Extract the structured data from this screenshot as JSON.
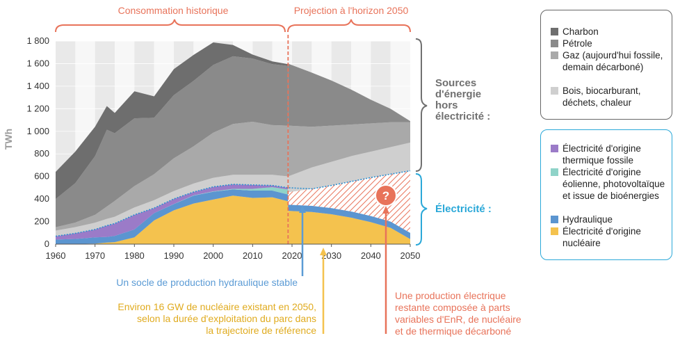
{
  "headers": {
    "historic": "Consommation historique",
    "projection": "Projection à l'horizon 2050"
  },
  "y_axis_label": "TWh",
  "group_labels": {
    "fossil": [
      "Sources",
      "d'énergie",
      "hors",
      "électricité :"
    ],
    "electricity": "Électricité :"
  },
  "question_mark": "?",
  "annotations": {
    "hydro": "Un socle de production hydraulique stable",
    "nuclear": [
      "Environ 16 GW de nucléaire existant en 2050,",
      "selon la durée d'exploitation du parc dans",
      "la trajectoire de référence"
    ],
    "remaining": [
      "Une production électrique",
      "restante composée à parts",
      "variables d'EnR, de nucléaire",
      "et de thermique décarboné"
    ]
  },
  "legend_fossil": [
    {
      "label": "Charbon",
      "color": "#6e6e6e"
    },
    {
      "label": "Pétrole",
      "color": "#8a8a8a"
    },
    {
      "label": "Gaz (aujourd'hui fossile, demain décarboné)",
      "color": "#a9a9a9"
    },
    {
      "label": "Bois, biocarburant, déchets, chaleur",
      "color": "#cfcfcf"
    }
  ],
  "legend_electricity": [
    {
      "label": "Électricité d'origine thermique fossile",
      "color": "#9b7bc8"
    },
    {
      "label": "Électricité d'origine éolienne, photovoltaïque et issue de bioénergies",
      "color": "#8fd3c8"
    },
    {
      "label": "Hydraulique",
      "color": "#5b95d0"
    },
    {
      "label": "Électricité d'origine nucléaire",
      "color": "#f4c24e"
    }
  ],
  "chart_data": {
    "type": "area",
    "stacked": true,
    "ylabel": "TWh",
    "xlim": [
      1960,
      2050
    ],
    "ylim": [
      0,
      1800
    ],
    "x_ticks": [
      1960,
      1970,
      1980,
      1990,
      2000,
      2010,
      2020,
      2030,
      2040,
      2050
    ],
    "y_ticks": [
      0,
      200,
      400,
      600,
      800,
      1000,
      1200,
      1400,
      1600,
      1800
    ],
    "y_tick_labels": [
      "0",
      "200",
      "400",
      "600",
      "800",
      "1 000",
      "1 200",
      "1 400",
      "1 600",
      "1 800"
    ],
    "projection_start": 2019,
    "historic_years": [
      1960,
      1965,
      1970,
      1973,
      1975,
      1980,
      1985,
      1990,
      1995,
      2000,
      2005,
      2010,
      2015,
      2019
    ],
    "historic_series": [
      {
        "name": "Électricité d'origine nucléaire",
        "color": "#f4c24e",
        "values": [
          0,
          1,
          5,
          14,
          18,
          60,
          210,
          300,
          360,
          395,
          430,
          410,
          415,
          380
        ]
      },
      {
        "name": "Hydraulique",
        "color": "#5b95d0",
        "values": [
          40,
          45,
          55,
          50,
          55,
          70,
          65,
          55,
          70,
          70,
          55,
          65,
          60,
          60
        ]
      },
      {
        "name": "Électricité d'origine éolienne, photovoltaïque et issue de bioénergies",
        "color": "#8fd3c8",
        "values": [
          0,
          0,
          0,
          0,
          0,
          0,
          0,
          1,
          2,
          3,
          5,
          15,
          30,
          45
        ]
      },
      {
        "name": "Électricité d'origine thermique fossile",
        "color": "#9b7bc8",
        "values": [
          30,
          50,
          70,
          100,
          110,
          130,
          45,
          45,
          30,
          40,
          40,
          35,
          15,
          15
        ]
      },
      {
        "name": "Bois, biocarburant, déchets, chaleur",
        "color": "#cfcfcf",
        "values": [
          50,
          55,
          60,
          60,
          60,
          65,
          70,
          70,
          75,
          80,
          85,
          90,
          95,
          100
        ]
      },
      {
        "name": "Gaz (aujourd'hui fossile, demain décarboné)",
        "color": "#a9a9a9",
        "values": [
          30,
          40,
          70,
          110,
          140,
          190,
          230,
          290,
          330,
          400,
          450,
          470,
          440,
          450
        ]
      },
      {
        "name": "Pétrole",
        "color": "#8a8a8a",
        "values": [
          250,
          350,
          520,
          680,
          600,
          600,
          500,
          560,
          580,
          600,
          600,
          560,
          540,
          530
        ]
      },
      {
        "name": "Charbon",
        "color": "#6e6e6e",
        "values": [
          240,
          280,
          260,
          210,
          180,
          240,
          190,
          230,
          230,
          200,
          100,
          35,
          25,
          15
        ]
      }
    ],
    "projection_years": [
      2019,
      2025,
      2030,
      2035,
      2040,
      2045,
      2050
    ],
    "projection_totals": [
      1600,
      1520,
      1450,
      1370,
      1280,
      1200,
      1090
    ],
    "projection_fossil_boundaries": [
      {
        "name": "Bois, biocarburant, déchets, chaleur (haut)",
        "values": [
          600,
          680,
          730,
          780,
          820,
          860,
          900
        ]
      },
      {
        "name": "Gaz (haut)",
        "values": [
          1050,
          1040,
          1050,
          1060,
          1070,
          1080,
          1080
        ]
      }
    ],
    "projection_electricity_total": [
      460,
      490,
      520,
      555,
      590,
      620,
      650
    ],
    "projection_existing_nuclear": [
      350,
      340,
      320,
      290,
      250,
      200,
      100
    ],
    "projection_hydro": [
      60,
      60,
      60,
      60,
      60,
      60,
      60
    ]
  }
}
